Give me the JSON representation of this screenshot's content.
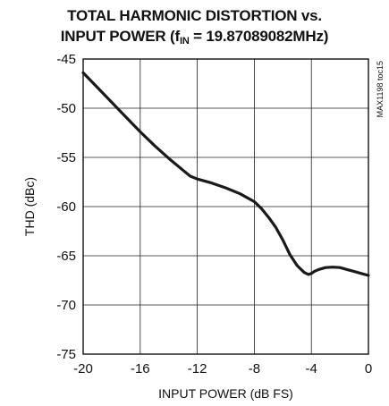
{
  "chart_data": {
    "type": "line",
    "title_line1": "TOTAL HARMONIC DISTORTION vs.",
    "title_line2_prefix": "INPUT POWER (f",
    "title_line2_sub": "IN",
    "title_line2_suffix": " = 19.87089082MHz)",
    "xlabel": "INPUT POWER (dB FS)",
    "ylabel": "THD (dBc)",
    "xlim": [
      -20,
      0
    ],
    "ylim": [
      -75,
      -45
    ],
    "xticks": [
      -20,
      -16,
      -12,
      -8,
      -4,
      0
    ],
    "yticks": [
      -45,
      -50,
      -55,
      -60,
      -65,
      -70,
      -75
    ],
    "grid": true,
    "side_label": "MAX1198 toc15",
    "x": [
      -20,
      -19,
      -18,
      -17,
      -16,
      -15,
      -14,
      -13,
      -12.5,
      -12,
      -11,
      -10,
      -9,
      -8,
      -7.5,
      -7,
      -6.5,
      -6,
      -5.5,
      -5,
      -4.5,
      -4.2,
      -4,
      -3.8,
      -3.5,
      -3,
      -2.5,
      -2,
      -1.5,
      -1,
      -0.5,
      0
    ],
    "y": [
      -46.4,
      -47.9,
      -49.4,
      -50.9,
      -52.4,
      -53.8,
      -55.1,
      -56.3,
      -56.9,
      -57.2,
      -57.6,
      -58.1,
      -58.7,
      -59.5,
      -60.2,
      -61.1,
      -62.1,
      -63.4,
      -64.9,
      -66.0,
      -66.7,
      -66.9,
      -66.8,
      -66.6,
      -66.4,
      -66.2,
      -66.15,
      -66.2,
      -66.4,
      -66.6,
      -66.8,
      -67.0
    ]
  }
}
